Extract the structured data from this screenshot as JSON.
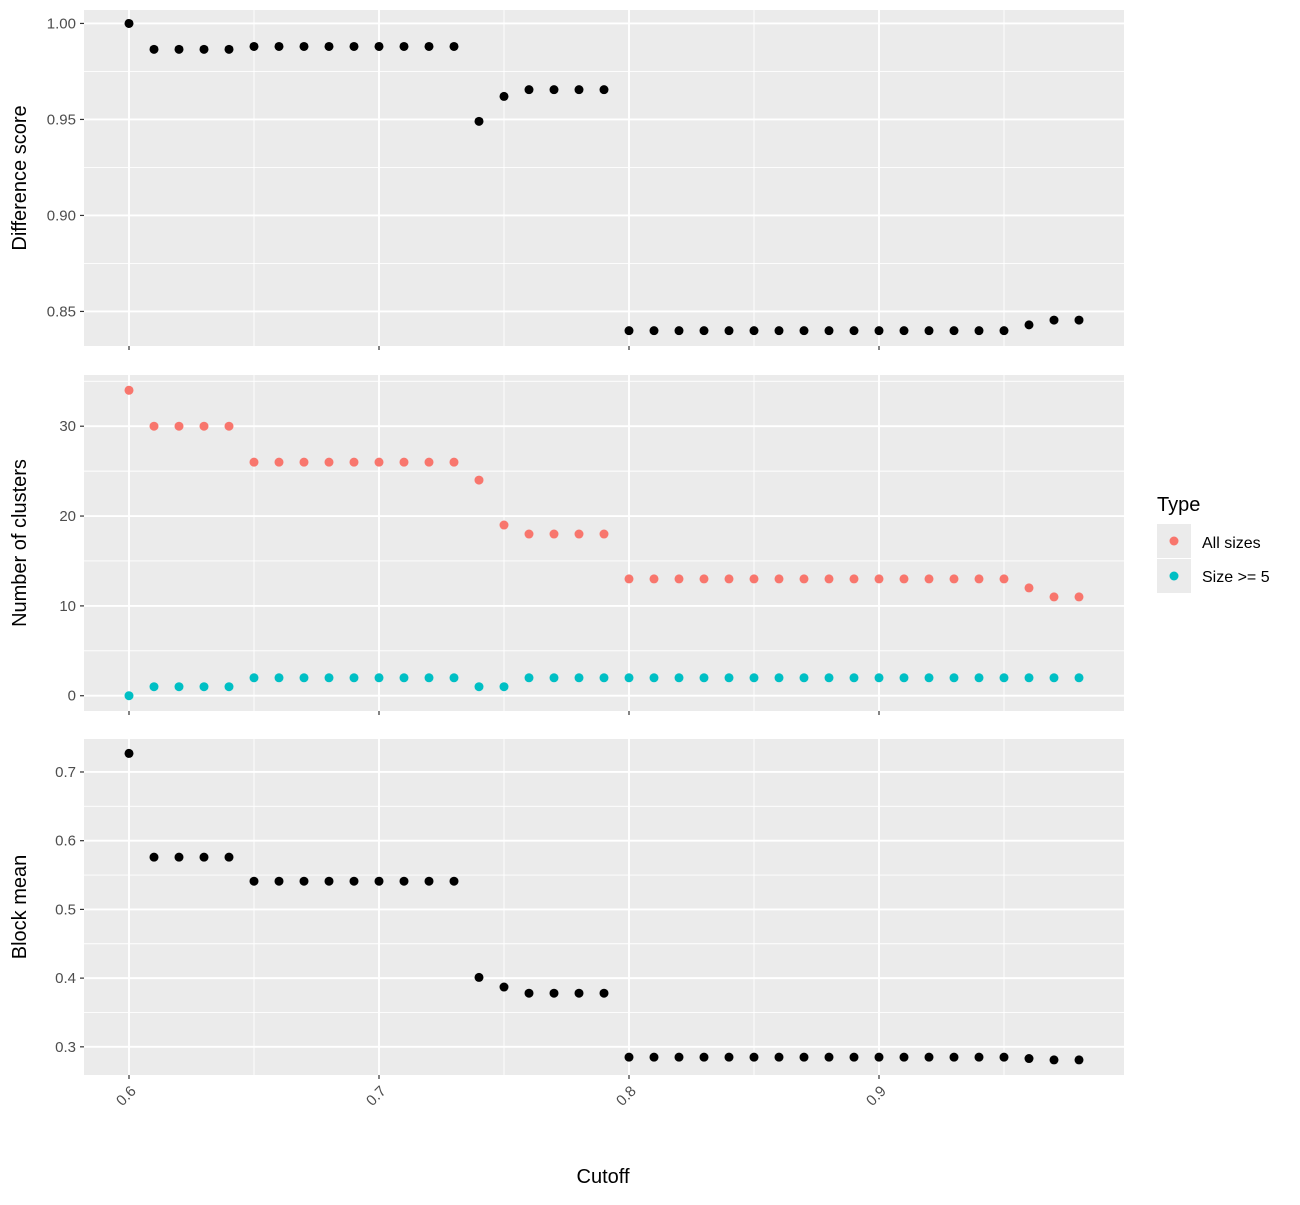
{
  "figure": {
    "xlabel": "Cutoff",
    "xlim": [
      0.6,
      0.98
    ],
    "xticks": [
      0.6,
      0.7,
      0.8,
      0.9
    ],
    "x_tick_labels": [
      "0.6",
      "0.7",
      "0.8",
      "0.9"
    ],
    "panel_background": "#ebebeb",
    "grid_color": "#ffffff"
  },
  "legend": {
    "title": "Type",
    "placement": "right",
    "items": [
      {
        "label": "All sizes",
        "color": "#F8766D"
      },
      {
        "label": "Size >= 5",
        "color": "#00BFC4"
      }
    ]
  },
  "chart_data": [
    {
      "type": "scatter",
      "ylabel": "Difference score",
      "ylim": [
        0.832,
        1.007
      ],
      "yticks": [
        0.85,
        0.9,
        0.95,
        1.0
      ],
      "y_tick_labels": [
        "0.85",
        "0.90",
        "0.95",
        "1.00"
      ],
      "x": [
        0.6,
        0.61,
        0.62,
        0.63,
        0.64,
        0.65,
        0.66,
        0.67,
        0.68,
        0.69,
        0.7,
        0.71,
        0.72,
        0.73,
        0.74,
        0.75,
        0.76,
        0.77,
        0.78,
        0.79,
        0.8,
        0.81,
        0.82,
        0.83,
        0.84,
        0.85,
        0.86,
        0.87,
        0.88,
        0.89,
        0.9,
        0.91,
        0.92,
        0.93,
        0.94,
        0.95,
        0.96,
        0.97,
        0.98
      ],
      "series": [
        {
          "color": "#000000",
          "values": [
            1.0,
            0.9865,
            0.9865,
            0.9865,
            0.9865,
            0.988,
            0.988,
            0.988,
            0.988,
            0.988,
            0.988,
            0.988,
            0.988,
            0.988,
            0.949,
            0.962,
            0.9655,
            0.9655,
            0.9655,
            0.9655,
            0.84,
            0.84,
            0.84,
            0.84,
            0.84,
            0.84,
            0.84,
            0.84,
            0.84,
            0.84,
            0.84,
            0.84,
            0.84,
            0.84,
            0.84,
            0.84,
            0.843,
            0.8455,
            0.8455
          ]
        }
      ]
    },
    {
      "type": "scatter",
      "ylabel": "Number of clusters",
      "ylim": [
        -1.7,
        35.7
      ],
      "yticks": [
        0,
        10,
        20,
        30
      ],
      "y_tick_labels": [
        "0",
        "10",
        "20",
        "30"
      ],
      "x": [
        0.6,
        0.61,
        0.62,
        0.63,
        0.64,
        0.65,
        0.66,
        0.67,
        0.68,
        0.69,
        0.7,
        0.71,
        0.72,
        0.73,
        0.74,
        0.75,
        0.76,
        0.77,
        0.78,
        0.79,
        0.8,
        0.81,
        0.82,
        0.83,
        0.84,
        0.85,
        0.86,
        0.87,
        0.88,
        0.89,
        0.9,
        0.91,
        0.92,
        0.93,
        0.94,
        0.95,
        0.96,
        0.97,
        0.98
      ],
      "series": [
        {
          "name": "All sizes",
          "color": "#F8766D",
          "values": [
            34,
            30,
            30,
            30,
            30,
            26,
            26,
            26,
            26,
            26,
            26,
            26,
            26,
            26,
            24,
            19,
            18,
            18,
            18,
            18,
            13,
            13,
            13,
            13,
            13,
            13,
            13,
            13,
            13,
            13,
            13,
            13,
            13,
            13,
            13,
            13,
            12,
            11,
            11
          ]
        },
        {
          "name": "Size >= 5",
          "color": "#00BFC4",
          "values": [
            0,
            1,
            1,
            1,
            1,
            2,
            2,
            2,
            2,
            2,
            2,
            2,
            2,
            2,
            1,
            1,
            2,
            2,
            2,
            2,
            2,
            2,
            2,
            2,
            2,
            2,
            2,
            2,
            2,
            2,
            2,
            2,
            2,
            2,
            2,
            2,
            2,
            2,
            2
          ]
        }
      ]
    },
    {
      "type": "scatter",
      "ylabel": "Block mean",
      "ylim": [
        0.259,
        0.748
      ],
      "yticks": [
        0.3,
        0.4,
        0.5,
        0.6,
        0.7
      ],
      "y_tick_labels": [
        "0.3",
        "0.4",
        "0.5",
        "0.6",
        "0.7"
      ],
      "x": [
        0.6,
        0.61,
        0.62,
        0.63,
        0.64,
        0.65,
        0.66,
        0.67,
        0.68,
        0.69,
        0.7,
        0.71,
        0.72,
        0.73,
        0.74,
        0.75,
        0.76,
        0.77,
        0.78,
        0.79,
        0.8,
        0.81,
        0.82,
        0.83,
        0.84,
        0.85,
        0.86,
        0.87,
        0.88,
        0.89,
        0.9,
        0.91,
        0.92,
        0.93,
        0.94,
        0.95,
        0.96,
        0.97,
        0.98
      ],
      "series": [
        {
          "color": "#000000",
          "values": [
            0.727,
            0.576,
            0.576,
            0.576,
            0.576,
            0.541,
            0.541,
            0.541,
            0.541,
            0.541,
            0.541,
            0.541,
            0.541,
            0.541,
            0.401,
            0.387,
            0.378,
            0.378,
            0.378,
            0.378,
            0.285,
            0.285,
            0.285,
            0.285,
            0.285,
            0.285,
            0.285,
            0.285,
            0.285,
            0.285,
            0.285,
            0.285,
            0.285,
            0.285,
            0.285,
            0.285,
            0.283,
            0.281,
            0.281
          ]
        }
      ]
    }
  ]
}
